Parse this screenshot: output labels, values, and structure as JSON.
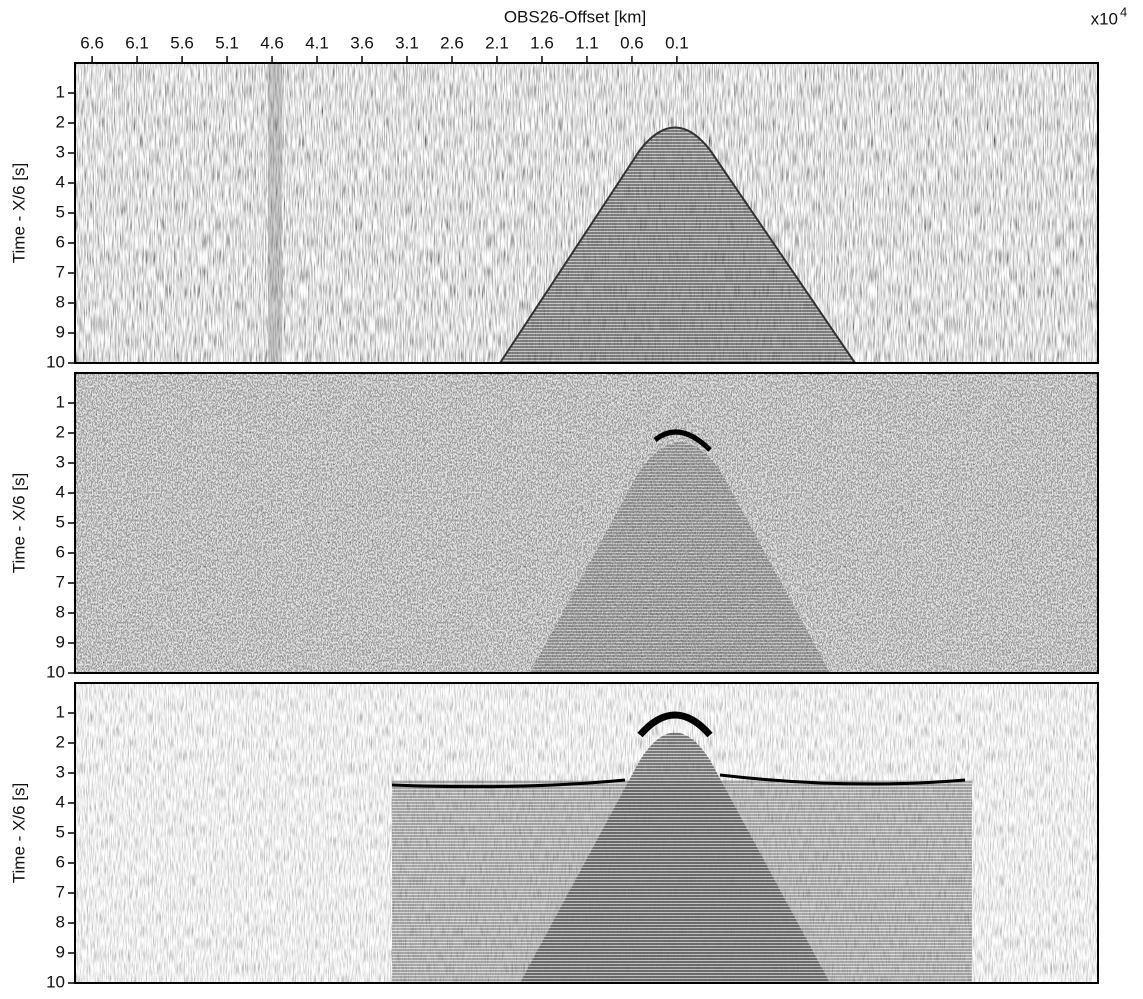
{
  "chart_data": [
    {
      "type": "seismic",
      "title": "OBS26-Offset [km]",
      "x_scale": {
        "base": "x10",
        "exponent": "4"
      },
      "xlim": [
        6.79,
        -4.58
      ],
      "xticks": [
        6.6,
        6.1,
        5.6,
        5.1,
        4.6,
        4.1,
        3.6,
        3.1,
        2.6,
        2.1,
        1.6,
        1.1,
        0.6,
        0.1
      ],
      "ylabel": "Time - X/6 [s]",
      "ylim": [
        0,
        10
      ],
      "yticks": [
        1,
        2,
        3,
        4,
        5,
        6,
        7,
        8,
        9,
        10
      ]
    },
    {
      "type": "seismic",
      "ylabel": "Time - X/6 [s]",
      "ylim": [
        0,
        10
      ],
      "yticks": [
        1,
        2,
        3,
        4,
        5,
        6,
        7,
        8,
        9,
        10
      ]
    },
    {
      "type": "seismic",
      "ylabel": "Time - X/6 [s]",
      "ylim": [
        0,
        10
      ],
      "yticks": [
        1,
        2,
        3,
        4,
        5,
        6,
        7,
        8,
        9,
        10
      ]
    }
  ]
}
